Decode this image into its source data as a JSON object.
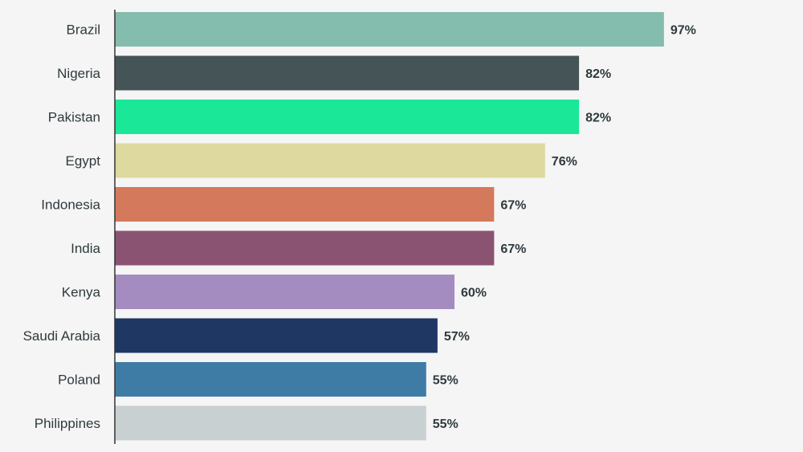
{
  "chart_data": {
    "type": "bar",
    "orientation": "horizontal",
    "categories": [
      "Brazil",
      "Nigeria",
      "Pakistan",
      "Egypt",
      "Indonesia",
      "India",
      "Kenya",
      "Saudi Arabia",
      "Poland",
      "Philippines"
    ],
    "values": [
      97,
      82,
      82,
      76,
      67,
      67,
      60,
      57,
      55,
      55
    ],
    "value_labels": [
      "97%",
      "82%",
      "82%",
      "76%",
      "67%",
      "67%",
      "60%",
      "57%",
      "55%",
      "55%"
    ],
    "colors": [
      "#84bcad",
      "#455457",
      "#1ae797",
      "#ddd99f",
      "#d4795c",
      "#8a5372",
      "#a48cc1",
      "#1f3763",
      "#3e7ca6",
      "#c9d0d2"
    ],
    "title": "",
    "xlabel": "",
    "ylabel": "",
    "xlim": [
      0,
      100
    ],
    "grid": false,
    "legend": "none"
  }
}
